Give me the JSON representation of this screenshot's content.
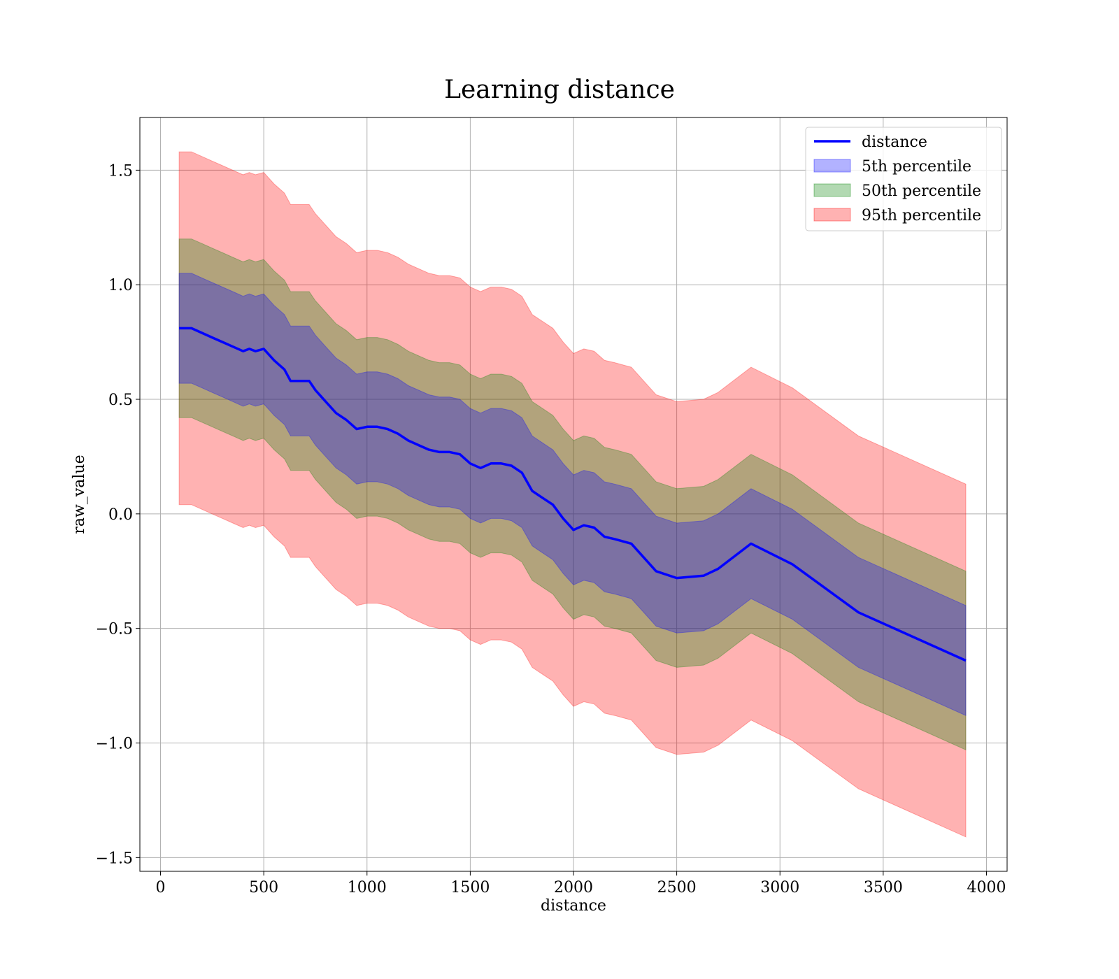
{
  "chart_data": {
    "type": "line",
    "title": "Learning distance",
    "xlabel": "distance",
    "ylabel": "raw_value",
    "xlim": [
      -100,
      4100
    ],
    "ylim": [
      -1.56,
      1.73
    ],
    "xticks": [
      0,
      500,
      1000,
      1500,
      2000,
      2500,
      3000,
      3500,
      4000
    ],
    "xtick_labels": [
      "0",
      "500",
      "1000",
      "1500",
      "2000",
      "2500",
      "3000",
      "3500",
      "4000"
    ],
    "yticks": [
      -1.5,
      -1.0,
      -0.5,
      0.0,
      0.5,
      1.0,
      1.5
    ],
    "ytick_labels": [
      "−1.5",
      "−1.0",
      "−0.5",
      "0.0",
      "0.5",
      "1.0",
      "1.5"
    ],
    "grid": true,
    "legend_position": "top-right",
    "x": [
      90,
      150,
      200,
      250,
      300,
      350,
      400,
      430,
      460,
      500,
      550,
      600,
      630,
      700,
      720,
      750,
      800,
      850,
      900,
      950,
      1000,
      1050,
      1100,
      1150,
      1200,
      1250,
      1300,
      1350,
      1400,
      1450,
      1500,
      1550,
      1600,
      1650,
      1700,
      1750,
      1800,
      1850,
      1900,
      1950,
      2000,
      2050,
      2100,
      2150,
      2200,
      2280,
      2400,
      2500,
      2630,
      2700,
      2860,
      3060,
      3380,
      3900
    ],
    "series": [
      {
        "name": "distance",
        "kind": "line",
        "color": "#0000ff",
        "values": [
          0.81,
          0.81,
          0.79,
          0.77,
          0.75,
          0.73,
          0.71,
          0.72,
          0.71,
          0.72,
          0.67,
          0.63,
          0.58,
          0.58,
          0.58,
          0.54,
          0.49,
          0.44,
          0.41,
          0.37,
          0.38,
          0.38,
          0.37,
          0.35,
          0.32,
          0.3,
          0.28,
          0.27,
          0.27,
          0.26,
          0.22,
          0.2,
          0.22,
          0.22,
          0.21,
          0.18,
          0.1,
          0.07,
          0.04,
          -0.02,
          -0.07,
          -0.05,
          -0.06,
          -0.1,
          -0.11,
          -0.13,
          -0.25,
          -0.28,
          -0.27,
          -0.24,
          -0.13,
          -0.22,
          -0.43,
          -0.64
        ]
      },
      {
        "name": "5th percentile",
        "kind": "band",
        "color": "#0000ff",
        "opacity": 0.3,
        "lower": [
          0.57,
          0.57,
          0.55,
          0.53,
          0.51,
          0.49,
          0.47,
          0.48,
          0.47,
          0.48,
          0.43,
          0.39,
          0.34,
          0.34,
          0.34,
          0.3,
          0.25,
          0.2,
          0.17,
          0.13,
          0.14,
          0.14,
          0.13,
          0.11,
          0.08,
          0.06,
          0.04,
          0.03,
          0.03,
          0.02,
          -0.02,
          -0.04,
          -0.02,
          -0.02,
          -0.03,
          -0.06,
          -0.14,
          -0.17,
          -0.2,
          -0.26,
          -0.31,
          -0.29,
          -0.3,
          -0.34,
          -0.35,
          -0.37,
          -0.49,
          -0.52,
          -0.51,
          -0.48,
          -0.37,
          -0.46,
          -0.67,
          -0.88
        ],
        "upper": [
          1.05,
          1.05,
          1.03,
          1.01,
          0.99,
          0.97,
          0.95,
          0.96,
          0.95,
          0.96,
          0.91,
          0.87,
          0.82,
          0.82,
          0.82,
          0.78,
          0.73,
          0.68,
          0.65,
          0.61,
          0.62,
          0.62,
          0.61,
          0.59,
          0.56,
          0.54,
          0.52,
          0.51,
          0.51,
          0.5,
          0.46,
          0.44,
          0.46,
          0.46,
          0.45,
          0.42,
          0.34,
          0.31,
          0.28,
          0.22,
          0.17,
          0.19,
          0.18,
          0.14,
          0.13,
          0.11,
          -0.01,
          -0.04,
          -0.03,
          0.0,
          0.11,
          0.02,
          -0.19,
          -0.4
        ]
      },
      {
        "name": "50th percentile",
        "kind": "band",
        "color": "#008000",
        "opacity": 0.3,
        "lower": [
          0.42,
          0.42,
          0.4,
          0.38,
          0.36,
          0.34,
          0.32,
          0.33,
          0.32,
          0.33,
          0.28,
          0.24,
          0.19,
          0.19,
          0.19,
          0.15,
          0.1,
          0.05,
          0.02,
          -0.02,
          -0.01,
          -0.01,
          -0.02,
          -0.04,
          -0.07,
          -0.09,
          -0.11,
          -0.12,
          -0.12,
          -0.13,
          -0.17,
          -0.19,
          -0.17,
          -0.17,
          -0.18,
          -0.21,
          -0.29,
          -0.32,
          -0.35,
          -0.41,
          -0.46,
          -0.44,
          -0.45,
          -0.49,
          -0.5,
          -0.52,
          -0.64,
          -0.67,
          -0.66,
          -0.63,
          -0.52,
          -0.61,
          -0.82,
          -1.03
        ],
        "upper": [
          1.2,
          1.2,
          1.18,
          1.16,
          1.14,
          1.12,
          1.1,
          1.11,
          1.1,
          1.11,
          1.06,
          1.02,
          0.97,
          0.97,
          0.97,
          0.93,
          0.88,
          0.83,
          0.8,
          0.76,
          0.77,
          0.77,
          0.76,
          0.74,
          0.71,
          0.69,
          0.67,
          0.66,
          0.66,
          0.65,
          0.61,
          0.59,
          0.61,
          0.61,
          0.6,
          0.57,
          0.49,
          0.46,
          0.43,
          0.37,
          0.32,
          0.34,
          0.33,
          0.29,
          0.28,
          0.26,
          0.14,
          0.11,
          0.12,
          0.15,
          0.26,
          0.17,
          -0.04,
          -0.25
        ]
      },
      {
        "name": "95th percentile",
        "kind": "band",
        "color": "#ff0000",
        "opacity": 0.3,
        "lower": [
          0.04,
          0.04,
          0.02,
          0.0,
          -0.02,
          -0.04,
          -0.06,
          -0.05,
          -0.06,
          -0.05,
          -0.1,
          -0.14,
          -0.19,
          -0.19,
          -0.19,
          -0.23,
          -0.28,
          -0.33,
          -0.36,
          -0.4,
          -0.39,
          -0.39,
          -0.4,
          -0.42,
          -0.45,
          -0.47,
          -0.49,
          -0.5,
          -0.5,
          -0.51,
          -0.55,
          -0.57,
          -0.55,
          -0.55,
          -0.56,
          -0.59,
          -0.67,
          -0.7,
          -0.73,
          -0.79,
          -0.84,
          -0.82,
          -0.83,
          -0.87,
          -0.88,
          -0.9,
          -1.02,
          -1.05,
          -1.04,
          -1.01,
          -0.9,
          -0.99,
          -1.2,
          -1.41
        ],
        "upper": [
          1.58,
          1.58,
          1.56,
          1.54,
          1.52,
          1.5,
          1.48,
          1.49,
          1.48,
          1.49,
          1.44,
          1.4,
          1.35,
          1.35,
          1.35,
          1.31,
          1.26,
          1.21,
          1.18,
          1.14,
          1.15,
          1.15,
          1.14,
          1.12,
          1.09,
          1.07,
          1.05,
          1.04,
          1.04,
          1.03,
          0.99,
          0.97,
          0.99,
          0.99,
          0.98,
          0.95,
          0.87,
          0.84,
          0.81,
          0.75,
          0.7,
          0.72,
          0.71,
          0.67,
          0.66,
          0.64,
          0.52,
          0.49,
          0.5,
          0.53,
          0.64,
          0.55,
          0.34,
          0.13
        ]
      }
    ]
  }
}
